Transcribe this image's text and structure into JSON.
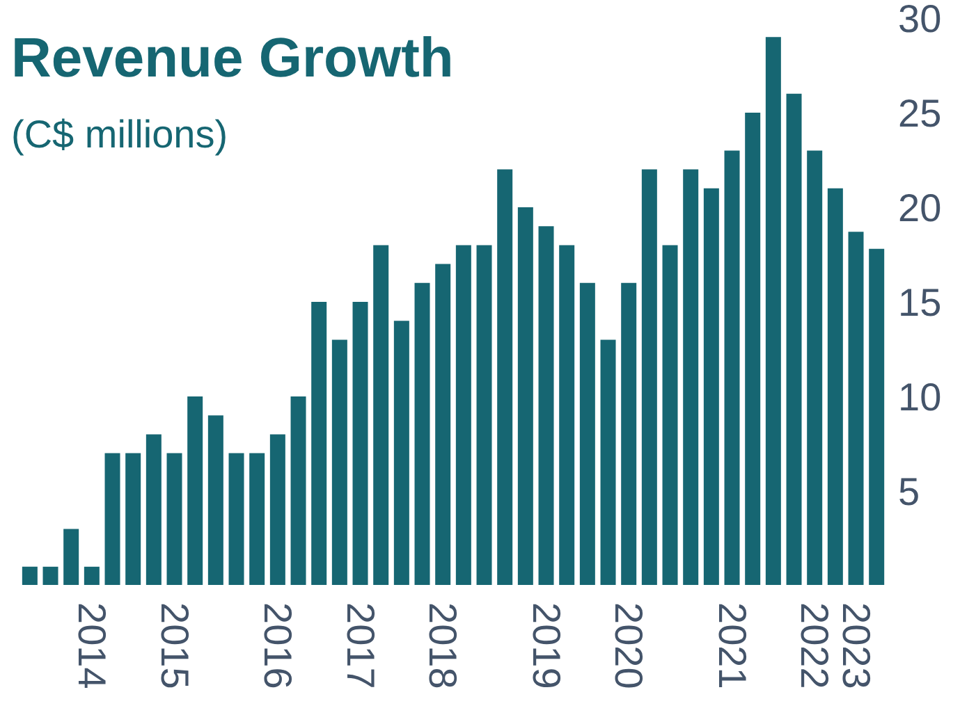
{
  "chart_data": {
    "type": "bar",
    "title": "Revenue Growth",
    "subtitle": "(C$ millions)",
    "categories": [
      null,
      null,
      null,
      "2014",
      null,
      null,
      null,
      "2015",
      null,
      null,
      null,
      null,
      "2016",
      null,
      null,
      null,
      "2017",
      null,
      null,
      null,
      "2018",
      null,
      null,
      null,
      null,
      "2019",
      null,
      null,
      null,
      "2020",
      null,
      null,
      null,
      null,
      "2021",
      null,
      null,
      null,
      "2022",
      null,
      "2023",
      null
    ],
    "values": [
      1,
      1,
      3,
      1,
      7,
      7,
      8,
      7,
      10,
      9,
      7,
      7,
      8,
      10,
      15,
      13,
      15,
      18,
      14,
      16,
      17,
      18,
      18,
      22,
      20,
      19,
      18,
      16,
      13,
      16,
      22,
      18,
      22,
      21,
      23,
      25,
      29,
      26,
      23,
      21,
      18.7,
      17.8
    ],
    "color": "#166672",
    "ylim": [
      0,
      30
    ],
    "yticks": [
      5,
      10,
      15,
      20,
      25,
      30
    ],
    "grid": false,
    "legend": false
  }
}
